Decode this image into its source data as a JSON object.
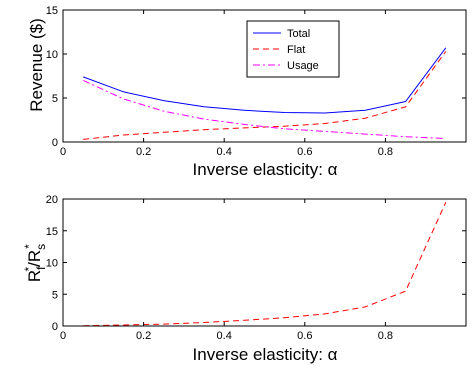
{
  "chart_data": [
    {
      "type": "line",
      "xlabel": "Inverse elasticity: α",
      "ylabel": "Revenue ($)",
      "xlim": [
        0,
        1
      ],
      "ylim": [
        0,
        15
      ],
      "xticks": [
        "0",
        "0.2",
        "0.4",
        "0.6",
        "0.8"
      ],
      "yticks": [
        "0",
        "5",
        "10",
        "15"
      ],
      "grid": false,
      "legend_position": "top-center",
      "x": [
        0.05,
        0.15,
        0.25,
        0.35,
        0.45,
        0.55,
        0.65,
        0.75,
        0.85,
        0.95
      ],
      "series": [
        {
          "name": "Total",
          "color": "#0000ff",
          "dash": "solid",
          "values": [
            7.4,
            5.7,
            4.7,
            4.0,
            3.6,
            3.35,
            3.3,
            3.6,
            4.6,
            10.7
          ]
        },
        {
          "name": "Flat",
          "color": "#ff0000",
          "dash": "dashed",
          "values": [
            0.3,
            0.8,
            1.1,
            1.4,
            1.6,
            1.8,
            2.1,
            2.7,
            4.0,
            10.3
          ]
        },
        {
          "name": "Usage",
          "color": "#ff00ff",
          "dash": "dashdot",
          "values": [
            7.0,
            4.9,
            3.5,
            2.6,
            2.0,
            1.5,
            1.2,
            0.9,
            0.6,
            0.4
          ]
        }
      ]
    },
    {
      "type": "line",
      "xlabel": "Inverse elasticity: α",
      "ylabel_main": "R",
      "ylabel_sub1": "f",
      "ylabel_sep": "/R",
      "ylabel_sub2": "s",
      "ylabel_sup": "*",
      "xlim": [
        0,
        1
      ],
      "ylim": [
        0,
        20
      ],
      "xticks": [
        "0",
        "0.2",
        "0.4",
        "0.6",
        "0.8"
      ],
      "yticks": [
        "0",
        "5",
        "10",
        "15",
        "20"
      ],
      "grid": false,
      "x": [
        0.05,
        0.15,
        0.25,
        0.35,
        0.45,
        0.55,
        0.65,
        0.75,
        0.85,
        0.95
      ],
      "series": [
        {
          "color": "#ff0000",
          "dash": "dashed",
          "values": [
            0.05,
            0.15,
            0.3,
            0.55,
            0.9,
            1.3,
            1.9,
            3.0,
            5.5,
            19.5
          ]
        }
      ]
    }
  ]
}
